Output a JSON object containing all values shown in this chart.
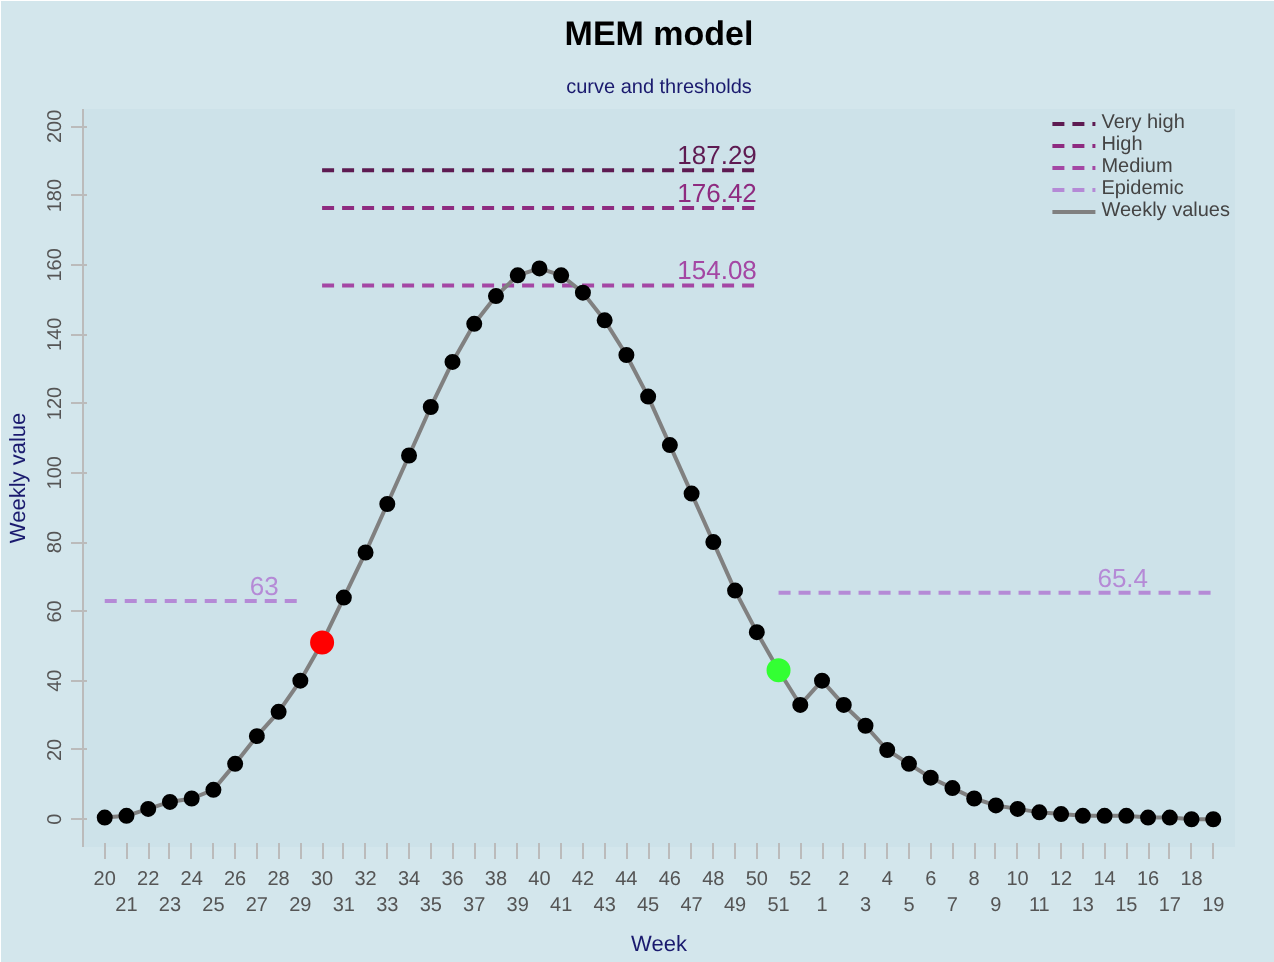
{
  "chart_data": {
    "type": "line",
    "title": "MEM model",
    "subtitle": "curve and thresholds",
    "xlabel": "Week",
    "ylabel": "Weekly value",
    "categories": [
      "20",
      "21",
      "22",
      "23",
      "24",
      "25",
      "26",
      "27",
      "28",
      "29",
      "30",
      "31",
      "32",
      "33",
      "34",
      "35",
      "36",
      "37",
      "38",
      "39",
      "40",
      "41",
      "42",
      "43",
      "44",
      "45",
      "46",
      "47",
      "48",
      "49",
      "50",
      "51",
      "52",
      "1",
      "2",
      "3",
      "4",
      "5",
      "6",
      "7",
      "8",
      "9",
      "10",
      "11",
      "12",
      "13",
      "14",
      "15",
      "16",
      "17",
      "18",
      "19"
    ],
    "ylim": [
      -8,
      205
    ],
    "yticks": [
      0,
      20,
      40,
      60,
      80,
      100,
      120,
      140,
      160,
      180,
      200
    ],
    "grid": false,
    "legend": "top right",
    "series": [
      {
        "name": "Very high",
        "type": "line",
        "line_style": "dashed",
        "color": "#5e1b52",
        "values": [
          null,
          null,
          null,
          null,
          null,
          null,
          null,
          null,
          null,
          null,
          187.29,
          187.29,
          187.29,
          187.29,
          187.29,
          187.29,
          187.29,
          187.29,
          187.29,
          187.29,
          187.29,
          187.29,
          187.29,
          187.29,
          187.29,
          187.29,
          187.29,
          187.29,
          187.29,
          187.29,
          187.29,
          null,
          null,
          null,
          null,
          null,
          null,
          null,
          null,
          null,
          null,
          null,
          null,
          null,
          null,
          null,
          null,
          null,
          null,
          null,
          null,
          null
        ],
        "value_labels": [
          null,
          null,
          null,
          null,
          null,
          null,
          null,
          null,
          null,
          null,
          null,
          null,
          null,
          null,
          null,
          null,
          null,
          null,
          null,
          null,
          null,
          null,
          null,
          null,
          null,
          null,
          null,
          null,
          null,
          null,
          "187.29",
          null,
          null,
          null,
          null,
          null,
          null,
          null,
          null,
          null,
          null,
          null,
          null,
          null,
          null,
          null,
          null,
          null,
          null,
          null,
          null,
          null
        ]
      },
      {
        "name": "High",
        "type": "line",
        "line_style": "dashed",
        "color": "#8e2b80",
        "values": [
          null,
          null,
          null,
          null,
          null,
          null,
          null,
          null,
          null,
          null,
          176.42,
          176.42,
          176.42,
          176.42,
          176.42,
          176.42,
          176.42,
          176.42,
          176.42,
          176.42,
          176.42,
          176.42,
          176.42,
          176.42,
          176.42,
          176.42,
          176.42,
          176.42,
          176.42,
          176.42,
          176.42,
          null,
          null,
          null,
          null,
          null,
          null,
          null,
          null,
          null,
          null,
          null,
          null,
          null,
          null,
          null,
          null,
          null,
          null,
          null,
          null,
          null
        ],
        "value_labels": [
          null,
          null,
          null,
          null,
          null,
          null,
          null,
          null,
          null,
          null,
          null,
          null,
          null,
          null,
          null,
          null,
          null,
          null,
          null,
          null,
          null,
          null,
          null,
          null,
          null,
          null,
          null,
          null,
          null,
          null,
          "176.42",
          null,
          null,
          null,
          null,
          null,
          null,
          null,
          null,
          null,
          null,
          null,
          null,
          null,
          null,
          null,
          null,
          null,
          null,
          null,
          null,
          null
        ]
      },
      {
        "name": "Medium",
        "type": "line",
        "line_style": "dashed",
        "color": "#a447a4",
        "values": [
          null,
          null,
          null,
          null,
          null,
          null,
          null,
          null,
          null,
          null,
          154.08,
          154.08,
          154.08,
          154.08,
          154.08,
          154.08,
          154.08,
          154.08,
          154.08,
          154.08,
          154.08,
          154.08,
          154.08,
          154.08,
          154.08,
          154.08,
          154.08,
          154.08,
          154.08,
          154.08,
          154.08,
          null,
          null,
          null,
          null,
          null,
          null,
          null,
          null,
          null,
          null,
          null,
          null,
          null,
          null,
          null,
          null,
          null,
          null,
          null,
          null,
          null
        ],
        "value_labels": [
          null,
          null,
          null,
          null,
          null,
          null,
          null,
          null,
          null,
          null,
          null,
          null,
          null,
          null,
          null,
          null,
          null,
          null,
          null,
          null,
          null,
          null,
          null,
          null,
          null,
          null,
          null,
          null,
          null,
          null,
          "154.08",
          null,
          null,
          null,
          null,
          null,
          null,
          null,
          null,
          null,
          null,
          null,
          null,
          null,
          null,
          null,
          null,
          null,
          null,
          null,
          null,
          null
        ]
      },
      {
        "name": "Epidemic",
        "type": "line",
        "line_style": "dashed",
        "color": "#b58ad6",
        "values": [
          63,
          63,
          63,
          63,
          63,
          63,
          63,
          63,
          63,
          63,
          null,
          null,
          null,
          null,
          null,
          null,
          null,
          null,
          null,
          null,
          null,
          null,
          null,
          null,
          null,
          null,
          null,
          null,
          null,
          null,
          null,
          65.4,
          65.4,
          65.4,
          65.4,
          65.4,
          65.4,
          65.4,
          65.4,
          65.4,
          65.4,
          65.4,
          65.4,
          65.4,
          65.4,
          65.4,
          65.4,
          65.4,
          65.4,
          65.4,
          65.4,
          65.4
        ],
        "value_labels": [
          null,
          null,
          null,
          null,
          null,
          null,
          null,
          null,
          "63",
          null,
          null,
          null,
          null,
          null,
          null,
          null,
          null,
          null,
          null,
          null,
          null,
          null,
          null,
          null,
          null,
          null,
          null,
          null,
          null,
          null,
          null,
          null,
          null,
          null,
          null,
          null,
          null,
          null,
          null,
          null,
          null,
          null,
          null,
          null,
          null,
          null,
          null,
          null,
          "65.4",
          null,
          null,
          null
        ]
      },
      {
        "name": "Weekly values",
        "line_style": "solid",
        "color": "#808080",
        "values": [
          0.5,
          1,
          3,
          5,
          6,
          8.5,
          16,
          24,
          31,
          40,
          51,
          64,
          77,
          91,
          105,
          119,
          132,
          143,
          151,
          157,
          159,
          157,
          152,
          144,
          134,
          122,
          108,
          94,
          80,
          66,
          54,
          43,
          33,
          40,
          33,
          27,
          20,
          16,
          12,
          9,
          6,
          4,
          3,
          2,
          1.5,
          1,
          1,
          1,
          0.5,
          0.5,
          0,
          0
        ]
      },
      {
        "type": "scatter",
        "marker": "circle",
        "color": "#000000",
        "values": [
          0.5,
          1,
          3,
          5,
          6,
          8.5,
          16,
          24,
          31,
          40,
          null,
          64,
          77,
          91,
          105,
          119,
          132,
          143,
          151,
          157,
          159,
          157,
          152,
          144,
          134,
          122,
          108,
          94,
          80,
          66,
          54,
          null,
          33,
          40,
          33,
          27,
          20,
          16,
          12,
          9,
          6,
          4,
          3,
          2,
          1.5,
          1,
          1,
          1,
          0.5,
          0.5,
          0,
          0
        ]
      },
      {
        "type": "scatter",
        "marker": "circle",
        "color": "#ff0000",
        "values": [
          null,
          null,
          null,
          null,
          null,
          null,
          null,
          null,
          null,
          null,
          51,
          null,
          null,
          null,
          null,
          null,
          null,
          null,
          null,
          null,
          null,
          null,
          null,
          null,
          null,
          null,
          null,
          null,
          null,
          null,
          null,
          null,
          null,
          null,
          null,
          null,
          null,
          null,
          null,
          null,
          null,
          null,
          null,
          null,
          null,
          null,
          null,
          null,
          null,
          null,
          null,
          null
        ]
      },
      {
        "type": "scatter",
        "marker": "circle",
        "color": "#33ff33",
        "values": [
          null,
          null,
          null,
          null,
          null,
          null,
          null,
          null,
          null,
          null,
          null,
          null,
          null,
          null,
          null,
          null,
          null,
          null,
          null,
          null,
          null,
          null,
          null,
          null,
          null,
          null,
          null,
          null,
          null,
          null,
          null,
          43,
          null,
          null,
          null,
          null,
          null,
          null,
          null,
          null,
          null,
          null,
          null,
          null,
          null,
          null,
          null,
          null,
          null,
          null,
          null,
          null
        ]
      }
    ]
  }
}
